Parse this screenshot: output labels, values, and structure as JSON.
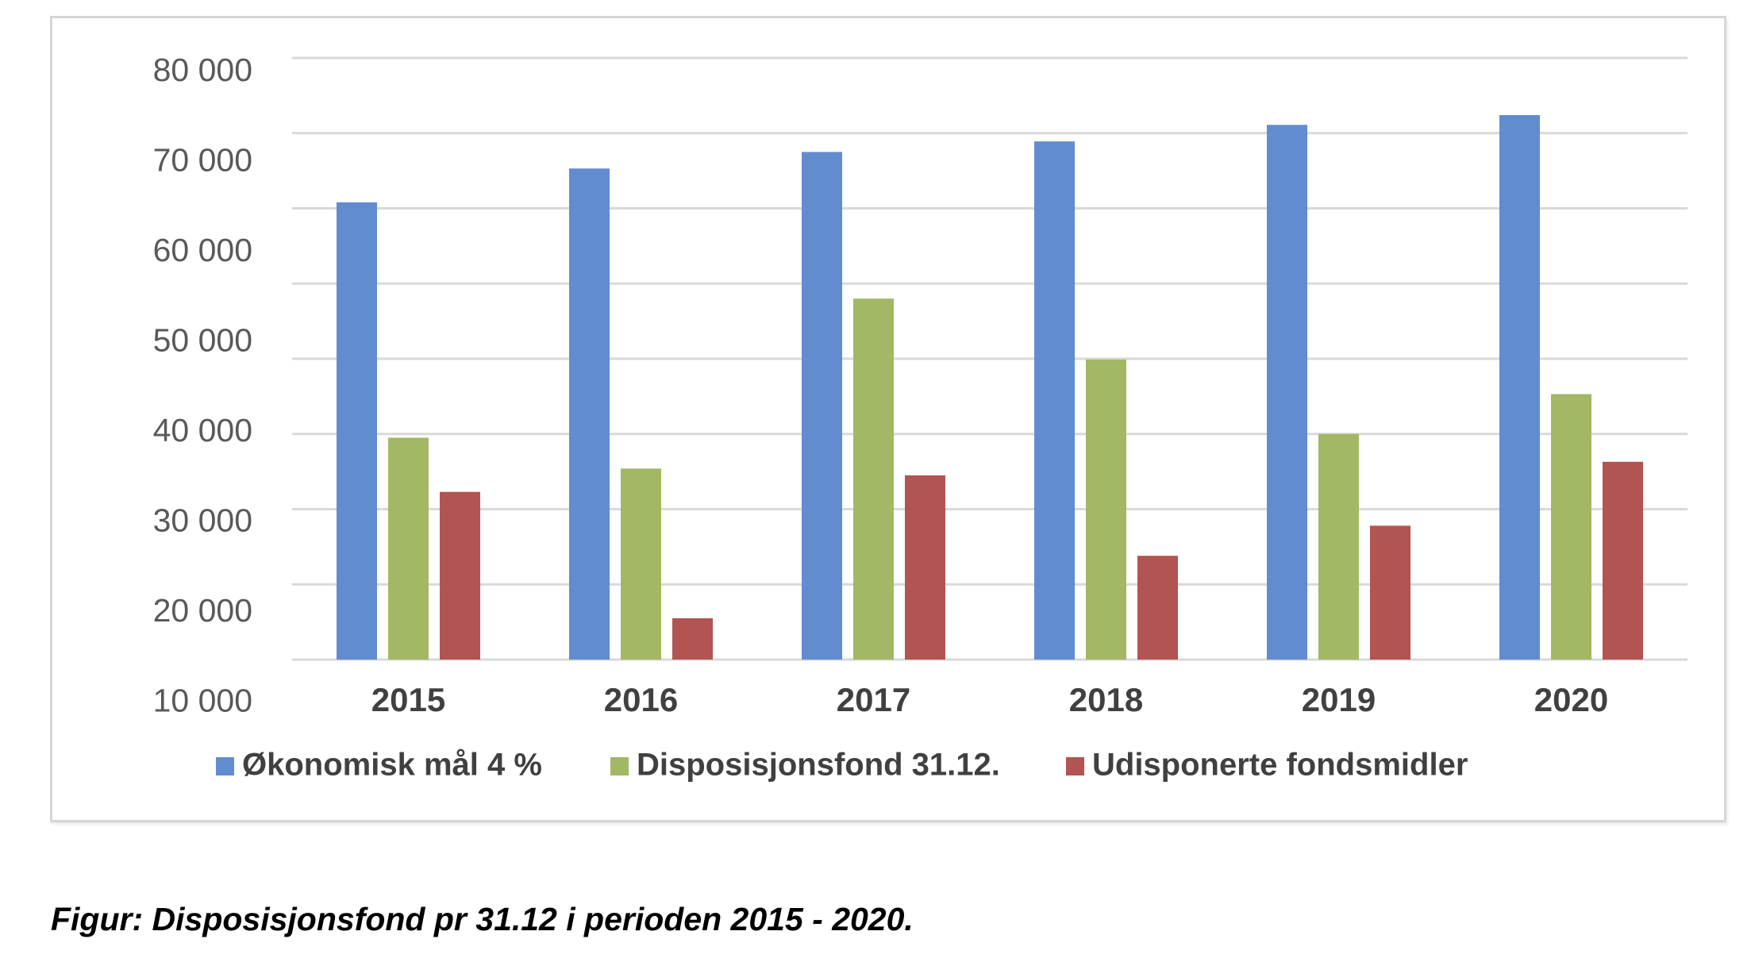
{
  "caption": "Figur: Disposisjonsfond pr 31.12 i perioden 2015 - 2020.",
  "colors": {
    "series_1": "#618cd0",
    "series_2": "#a2b864",
    "series_3": "#b15452",
    "grid": "#d9d9d9",
    "axis_text": "#595959"
  },
  "chart_data": {
    "type": "bar",
    "categories": [
      "2015",
      "2016",
      "2017",
      "2018",
      "2019",
      "2020"
    ],
    "series": [
      {
        "name": "Økonomisk mål 4 %",
        "values": [
          60800,
          65300,
          67500,
          68900,
          71100,
          72400
        ]
      },
      {
        "name": "Disposisjonsfond 31.12.",
        "values": [
          29500,
          25400,
          48000,
          39900,
          30000,
          35300
        ]
      },
      {
        "name": "Udisponerte fondsmidler",
        "values": [
          22300,
          5500,
          24500,
          13800,
          17800,
          26300
        ]
      }
    ],
    "y_tick_labels": [
      "80 000",
      "70 000",
      "60 000",
      "50 000",
      "40 000",
      "30 000",
      "20 000",
      "10 000"
    ],
    "ylim": [
      0,
      80000
    ],
    "grid": true,
    "legend_position": "bottom"
  }
}
